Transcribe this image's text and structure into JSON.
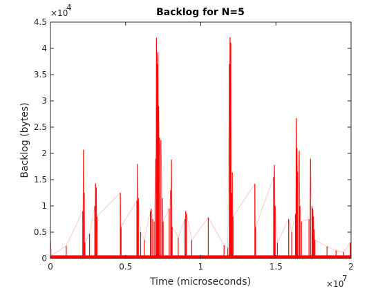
{
  "chart_data": {
    "type": "line",
    "title": "Backlog for N=5",
    "xlabel": "Time (microseconds)",
    "ylabel": "Backlog (bytes)",
    "xlim": [
      0,
      20000000
    ],
    "ylim": [
      0,
      45000
    ],
    "x_exponent_label": "×10",
    "x_exponent_power": "7",
    "y_exponent_label": "×10",
    "y_exponent_power": "4",
    "x_ticks": [
      0,
      5000000,
      10000000,
      15000000,
      20000000
    ],
    "x_tick_labels": [
      "0",
      "0.5",
      "1",
      "1.5",
      "2"
    ],
    "y_ticks": [
      0,
      5000,
      10000,
      15000,
      20000,
      25000,
      30000,
      35000,
      40000,
      45000
    ],
    "y_tick_labels": [
      "0",
      "0.5",
      "1",
      "1.5",
      "2",
      "2.5",
      "3",
      "3.5",
      "4",
      "4.5"
    ],
    "grid": false,
    "series": [
      {
        "color": "#ff0000",
        "baseline": 600,
        "points": [
          [
            0,
            3300
          ],
          [
            90000,
            600
          ],
          [
            1050000,
            2400
          ],
          [
            2150000,
            9000
          ],
          [
            2200000,
            20700
          ],
          [
            2250000,
            12500
          ],
          [
            2300000,
            3000
          ],
          [
            2600000,
            4700
          ],
          [
            2950000,
            10000
          ],
          [
            3000000,
            14300
          ],
          [
            3050000,
            13500
          ],
          [
            3100000,
            8000
          ],
          [
            4650000,
            12500
          ],
          [
            4700000,
            6000
          ],
          [
            5750000,
            11000
          ],
          [
            5800000,
            18000
          ],
          [
            5850000,
            11500
          ],
          [
            6000000,
            5000
          ],
          [
            6250000,
            3500
          ],
          [
            6650000,
            9000
          ],
          [
            6700000,
            9500
          ],
          [
            6800000,
            7500
          ],
          [
            6900000,
            7000
          ],
          [
            7000000,
            19000
          ],
          [
            7050000,
            42000
          ],
          [
            7100000,
            37000
          ],
          [
            7150000,
            39300
          ],
          [
            7200000,
            29000
          ],
          [
            7250000,
            23000
          ],
          [
            7350000,
            22500
          ],
          [
            7450000,
            11500
          ],
          [
            7500000,
            7000
          ],
          [
            7900000,
            9500
          ],
          [
            8000000,
            13000
          ],
          [
            8050000,
            18800
          ],
          [
            8100000,
            6000
          ],
          [
            8500000,
            4000
          ],
          [
            8950000,
            7500
          ],
          [
            9000000,
            9000
          ],
          [
            9050000,
            8500
          ],
          [
            9400000,
            3500
          ],
          [
            10500000,
            7800
          ],
          [
            11550000,
            2500
          ],
          [
            11800000,
            2000
          ],
          [
            11900000,
            37000
          ],
          [
            11950000,
            42100
          ],
          [
            12000000,
            41000
          ],
          [
            12050000,
            12500
          ],
          [
            12100000,
            16400
          ],
          [
            12150000,
            8000
          ],
          [
            13600000,
            14200
          ],
          [
            13650000,
            6000
          ],
          [
            14850000,
            15500
          ],
          [
            14900000,
            17800
          ],
          [
            14950000,
            10000
          ],
          [
            15100000,
            3000
          ],
          [
            15850000,
            7500
          ],
          [
            16050000,
            5000
          ],
          [
            16300000,
            8500
          ],
          [
            16350000,
            26700
          ],
          [
            16400000,
            21000
          ],
          [
            16450000,
            16500
          ],
          [
            16550000,
            20500
          ],
          [
            16600000,
            10000
          ],
          [
            16700000,
            7000
          ],
          [
            17200000,
            7500
          ],
          [
            17300000,
            19000
          ],
          [
            17400000,
            10000
          ],
          [
            17450000,
            9500
          ],
          [
            17500000,
            8000
          ],
          [
            17550000,
            5500
          ],
          [
            17600000,
            3500
          ],
          [
            18400000,
            2300
          ],
          [
            19000000,
            1500
          ],
          [
            19500000,
            1200
          ],
          [
            19950000,
            3000
          ]
        ]
      }
    ]
  }
}
